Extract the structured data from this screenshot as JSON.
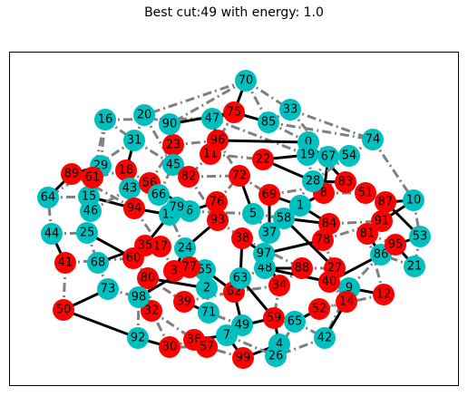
{
  "title": "Best cut:49 with energy: 1.0",
  "colors": {
    "partition_a": "#ff0000",
    "partition_b": "#00bfbf",
    "cut_edge": "#000000",
    "same_edge": "#808080"
  },
  "nodes": [
    {
      "id": "0",
      "p": "b"
    },
    {
      "id": "1",
      "p": "b"
    },
    {
      "id": "2",
      "p": "b"
    },
    {
      "id": "3",
      "p": "a"
    },
    {
      "id": "4",
      "p": "b"
    },
    {
      "id": "5",
      "p": "b"
    },
    {
      "id": "6",
      "p": "b"
    },
    {
      "id": "7",
      "p": "b"
    },
    {
      "id": "8",
      "p": "a"
    },
    {
      "id": "9",
      "p": "b"
    },
    {
      "id": "10",
      "p": "b"
    },
    {
      "id": "11",
      "p": "a"
    },
    {
      "id": "12",
      "p": "a"
    },
    {
      "id": "13",
      "p": "b"
    },
    {
      "id": "14",
      "p": "a"
    },
    {
      "id": "15",
      "p": "b"
    },
    {
      "id": "16",
      "p": "b"
    },
    {
      "id": "17",
      "p": "a"
    },
    {
      "id": "18",
      "p": "a"
    },
    {
      "id": "19",
      "p": "b"
    },
    {
      "id": "20",
      "p": "b"
    },
    {
      "id": "21",
      "p": "b"
    },
    {
      "id": "22",
      "p": "a"
    },
    {
      "id": "23",
      "p": "a"
    },
    {
      "id": "24",
      "p": "b"
    },
    {
      "id": "25",
      "p": "b"
    },
    {
      "id": "26",
      "p": "b"
    },
    {
      "id": "27",
      "p": "a"
    },
    {
      "id": "28",
      "p": "b"
    },
    {
      "id": "29",
      "p": "b"
    },
    {
      "id": "30",
      "p": "a"
    },
    {
      "id": "31",
      "p": "b"
    },
    {
      "id": "32",
      "p": "a"
    },
    {
      "id": "33",
      "p": "b"
    },
    {
      "id": "34",
      "p": "a"
    },
    {
      "id": "35",
      "p": "a"
    },
    {
      "id": "36",
      "p": "a"
    },
    {
      "id": "37",
      "p": "b"
    },
    {
      "id": "38",
      "p": "a"
    },
    {
      "id": "39",
      "p": "a"
    },
    {
      "id": "40",
      "p": "a"
    },
    {
      "id": "41",
      "p": "a"
    },
    {
      "id": "42",
      "p": "b"
    },
    {
      "id": "43",
      "p": "b"
    },
    {
      "id": "44",
      "p": "b"
    },
    {
      "id": "45",
      "p": "b"
    },
    {
      "id": "46",
      "p": "b"
    },
    {
      "id": "47",
      "p": "b"
    },
    {
      "id": "48",
      "p": "b"
    },
    {
      "id": "49",
      "p": "b"
    },
    {
      "id": "50",
      "p": "a"
    },
    {
      "id": "51",
      "p": "a"
    },
    {
      "id": "52",
      "p": "a"
    },
    {
      "id": "53",
      "p": "b"
    },
    {
      "id": "54",
      "p": "b"
    },
    {
      "id": "55",
      "p": "b"
    },
    {
      "id": "56",
      "p": "a"
    },
    {
      "id": "57",
      "p": "a"
    },
    {
      "id": "58",
      "p": "b"
    },
    {
      "id": "59",
      "p": "a"
    },
    {
      "id": "60",
      "p": "a"
    },
    {
      "id": "61",
      "p": "a"
    },
    {
      "id": "62",
      "p": "a"
    },
    {
      "id": "63",
      "p": "b"
    },
    {
      "id": "64",
      "p": "b"
    },
    {
      "id": "65",
      "p": "b"
    },
    {
      "id": "66",
      "p": "b"
    },
    {
      "id": "67",
      "p": "b"
    },
    {
      "id": "68",
      "p": "b"
    },
    {
      "id": "69",
      "p": "a"
    },
    {
      "id": "70",
      "p": "b"
    },
    {
      "id": "71",
      "p": "b"
    },
    {
      "id": "72",
      "p": "a"
    },
    {
      "id": "73",
      "p": "b"
    },
    {
      "id": "74",
      "p": "b"
    },
    {
      "id": "75",
      "p": "a"
    },
    {
      "id": "76",
      "p": "a"
    },
    {
      "id": "77",
      "p": "a"
    },
    {
      "id": "78",
      "p": "a"
    },
    {
      "id": "79",
      "p": "b"
    },
    {
      "id": "80",
      "p": "a"
    },
    {
      "id": "81",
      "p": "a"
    },
    {
      "id": "82",
      "p": "a"
    },
    {
      "id": "83",
      "p": "a"
    },
    {
      "id": "84",
      "p": "a"
    },
    {
      "id": "85",
      "p": "b"
    },
    {
      "id": "86",
      "p": "b"
    },
    {
      "id": "87",
      "p": "a"
    },
    {
      "id": "88",
      "p": "a"
    },
    {
      "id": "89",
      "p": "a"
    },
    {
      "id": "90",
      "p": "b"
    },
    {
      "id": "91",
      "p": "a"
    },
    {
      "id": "92",
      "p": "b"
    },
    {
      "id": "93",
      "p": "a"
    },
    {
      "id": "94",
      "p": "a"
    },
    {
      "id": "95",
      "p": "a"
    },
    {
      "id": "96",
      "p": "a"
    },
    {
      "id": "97",
      "p": "b"
    },
    {
      "id": "98",
      "p": "b"
    },
    {
      "id": "99",
      "p": "a"
    }
  ],
  "edges": [
    [
      "70",
      "75"
    ],
    [
      "70",
      "33"
    ],
    [
      "70",
      "90"
    ],
    [
      "70",
      "20"
    ],
    [
      "70",
      "85"
    ],
    [
      "33",
      "74"
    ],
    [
      "33",
      "85"
    ],
    [
      "20",
      "31"
    ],
    [
      "20",
      "90"
    ],
    [
      "16",
      "29"
    ],
    [
      "16",
      "31"
    ],
    [
      "16",
      "47"
    ],
    [
      "47",
      "75"
    ],
    [
      "75",
      "85"
    ],
    [
      "85",
      "74"
    ],
    [
      "74",
      "10"
    ],
    [
      "10",
      "87"
    ],
    [
      "10",
      "53"
    ],
    [
      "53",
      "21"
    ],
    [
      "21",
      "86"
    ],
    [
      "86",
      "9"
    ],
    [
      "9",
      "42"
    ],
    [
      "42",
      "14"
    ],
    [
      "42",
      "26"
    ],
    [
      "26",
      "4"
    ],
    [
      "4",
      "99"
    ],
    [
      "99",
      "57"
    ],
    [
      "57",
      "30"
    ],
    [
      "30",
      "92"
    ],
    [
      "92",
      "50"
    ],
    [
      "50",
      "41"
    ],
    [
      "41",
      "44"
    ],
    [
      "44",
      "64"
    ],
    [
      "64",
      "89"
    ],
    [
      "89",
      "29"
    ],
    [
      "29",
      "15"
    ],
    [
      "15",
      "46"
    ],
    [
      "46",
      "25"
    ],
    [
      "25",
      "68"
    ],
    [
      "68",
      "73"
    ],
    [
      "73",
      "98"
    ],
    [
      "98",
      "32"
    ],
    [
      "32",
      "36"
    ],
    [
      "36",
      "7"
    ],
    [
      "7",
      "49"
    ],
    [
      "49",
      "71"
    ],
    [
      "71",
      "2"
    ],
    [
      "2",
      "55"
    ],
    [
      "55",
      "77"
    ],
    [
      "77",
      "3"
    ],
    [
      "3",
      "17"
    ],
    [
      "17",
      "35"
    ],
    [
      "35",
      "60"
    ],
    [
      "60",
      "80"
    ],
    [
      "80",
      "39"
    ],
    [
      "39",
      "62"
    ],
    [
      "62",
      "63"
    ],
    [
      "63",
      "48"
    ],
    [
      "48",
      "97"
    ],
    [
      "97",
      "37"
    ],
    [
      "37",
      "5"
    ],
    [
      "5",
      "6"
    ],
    [
      "6",
      "79"
    ],
    [
      "79",
      "13"
    ],
    [
      "13",
      "94"
    ],
    [
      "94",
      "43"
    ],
    [
      "43",
      "56"
    ],
    [
      "56",
      "66"
    ],
    [
      "66",
      "45"
    ],
    [
      "45",
      "82"
    ],
    [
      "82",
      "72"
    ],
    [
      "72",
      "69"
    ],
    [
      "69",
      "1"
    ],
    [
      "1",
      "58"
    ],
    [
      "58",
      "84"
    ],
    [
      "84",
      "78"
    ],
    [
      "78",
      "27"
    ],
    [
      "27",
      "40"
    ],
    [
      "40",
      "9"
    ],
    [
      "9",
      "12"
    ],
    [
      "88",
      "34"
    ],
    [
      "34",
      "59"
    ],
    [
      "59",
      "65"
    ],
    [
      "65",
      "52"
    ],
    [
      "52",
      "14"
    ],
    [
      "14",
      "40"
    ],
    [
      "0",
      "19"
    ],
    [
      "19",
      "28"
    ],
    [
      "28",
      "67"
    ],
    [
      "67",
      "54"
    ],
    [
      "54",
      "74"
    ],
    [
      "28",
      "83"
    ],
    [
      "83",
      "51"
    ],
    [
      "51",
      "87"
    ],
    [
      "87",
      "91"
    ],
    [
      "91",
      "81"
    ],
    [
      "81",
      "95"
    ],
    [
      "95",
      "53"
    ],
    [
      "23",
      "96"
    ],
    [
      "96",
      "11"
    ],
    [
      "11",
      "22"
    ],
    [
      "22",
      "19"
    ],
    [
      "23",
      "45"
    ],
    [
      "18",
      "61"
    ],
    [
      "61",
      "29"
    ],
    [
      "18",
      "56"
    ],
    [
      "56",
      "23"
    ],
    [
      "76",
      "93"
    ],
    [
      "93",
      "38"
    ],
    [
      "38",
      "97"
    ],
    [
      "76",
      "6"
    ],
    [
      "24",
      "55"
    ],
    [
      "24",
      "13"
    ],
    [
      "3",
      "24"
    ],
    [
      "5",
      "58"
    ],
    [
      "58",
      "28"
    ],
    [
      "8",
      "1"
    ],
    [
      "8",
      "51"
    ],
    [
      "34",
      "97"
    ],
    [
      "88",
      "27"
    ],
    [
      "48",
      "88"
    ],
    [
      "62",
      "34"
    ],
    [
      "62",
      "49"
    ],
    [
      "59",
      "4"
    ],
    [
      "26",
      "65"
    ],
    [
      "40",
      "86"
    ],
    [
      "84",
      "91"
    ],
    [
      "81",
      "86"
    ],
    [
      "1",
      "84"
    ],
    [
      "63",
      "38"
    ],
    [
      "76",
      "72"
    ],
    [
      "11",
      "82"
    ],
    [
      "96",
      "72"
    ],
    [
      "90",
      "23"
    ],
    [
      "47",
      "96"
    ],
    [
      "31",
      "18"
    ],
    [
      "15",
      "94"
    ],
    [
      "44",
      "25"
    ],
    [
      "41",
      "60"
    ],
    [
      "50",
      "73"
    ],
    [
      "92",
      "98"
    ],
    [
      "30",
      "32"
    ],
    [
      "57",
      "36"
    ],
    [
      "7",
      "99"
    ],
    [
      "39",
      "71"
    ],
    [
      "2",
      "80"
    ],
    [
      "35",
      "68"
    ],
    [
      "60",
      "25"
    ],
    [
      "46",
      "61"
    ],
    [
      "64",
      "15"
    ],
    [
      "43",
      "18"
    ],
    [
      "66",
      "79"
    ],
    [
      "45",
      "31"
    ],
    [
      "82",
      "93"
    ],
    [
      "69",
      "37"
    ],
    [
      "22",
      "28"
    ],
    [
      "67",
      "8"
    ],
    [
      "0",
      "83"
    ],
    [
      "54",
      "28"
    ],
    [
      "19",
      "47"
    ],
    [
      "85",
      "0"
    ],
    [
      "75",
      "11"
    ],
    [
      "95",
      "21"
    ],
    [
      "10",
      "91"
    ],
    [
      "12",
      "52"
    ],
    [
      "14",
      "9"
    ],
    [
      "65",
      "42"
    ],
    [
      "49",
      "59"
    ],
    [
      "7",
      "26"
    ],
    [
      "36",
      "30"
    ],
    [
      "32",
      "80"
    ],
    [
      "98",
      "77"
    ],
    [
      "17",
      "94"
    ],
    [
      "13",
      "35"
    ],
    [
      "55",
      "62"
    ],
    [
      "63",
      "59"
    ],
    [
      "48",
      "40"
    ],
    [
      "97",
      "78"
    ],
    [
      "37",
      "1"
    ],
    [
      "58",
      "27"
    ],
    [
      "93",
      "24"
    ],
    [
      "6",
      "56"
    ],
    [
      "66",
      "13"
    ],
    [
      "94",
      "89"
    ],
    [
      "43",
      "46"
    ],
    [
      "20",
      "45"
    ],
    [
      "90",
      "75"
    ],
    [
      "16",
      "15"
    ],
    [
      "31",
      "64"
    ],
    [
      "72",
      "5"
    ],
    [
      "69",
      "83"
    ],
    [
      "38",
      "88"
    ],
    [
      "78",
      "91"
    ],
    [
      "81",
      "12"
    ],
    [
      "87",
      "53"
    ],
    [
      "33",
      "67"
    ],
    [
      "0",
      "96"
    ]
  ]
}
